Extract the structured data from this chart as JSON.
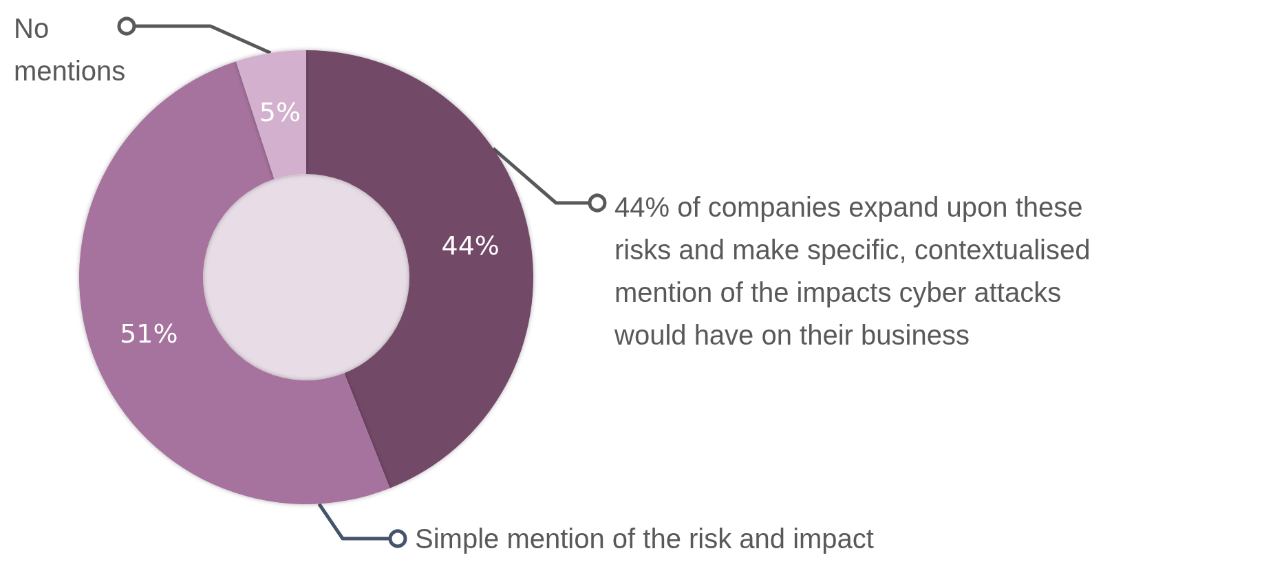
{
  "chart_data": {
    "type": "donut",
    "categories": [
      "44% of companies expand upon these risks and make specific, contextualised mention of the impacts cyber attacks would have on their business",
      "Simple mention of the risk and impact",
      "No mentions"
    ],
    "values": [
      44,
      51,
      5
    ],
    "value_labels": [
      "44%",
      "51%",
      "5%"
    ],
    "colors": [
      "#734868",
      "#a6739e",
      "#d4b0cf"
    ],
    "legend": false
  }
}
